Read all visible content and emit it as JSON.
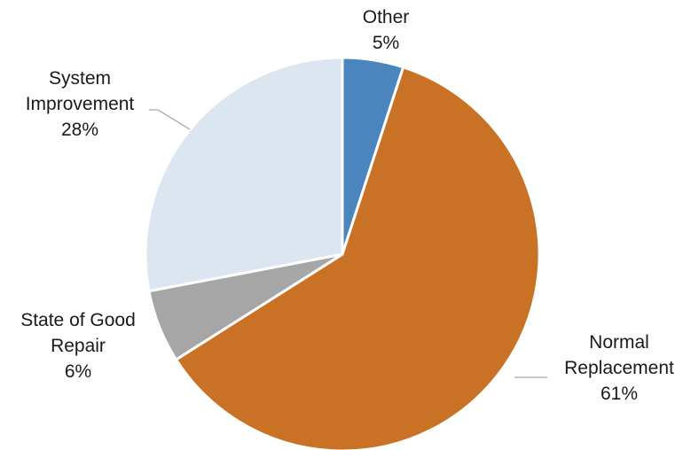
{
  "chart_data": {
    "type": "pie",
    "title": "",
    "slices": [
      {
        "label_lines": [
          "Other"
        ],
        "pct_text": "5%",
        "value": 5,
        "color": "#4a86bd"
      },
      {
        "label_lines": [
          "Normal",
          "Replacement"
        ],
        "pct_text": "61%",
        "value": 61,
        "color": "#c97226"
      },
      {
        "label_lines": [
          "State of Good",
          "Repair"
        ],
        "pct_text": "6%",
        "value": 6,
        "color": "#a6a6a6"
      },
      {
        "label_lines": [
          "System",
          "Improvement"
        ],
        "pct_text": "28%",
        "value": 28,
        "color": "#dce6f1"
      }
    ],
    "start_angle": "12 o'clock",
    "direction": "clockwise",
    "legend": "none"
  }
}
